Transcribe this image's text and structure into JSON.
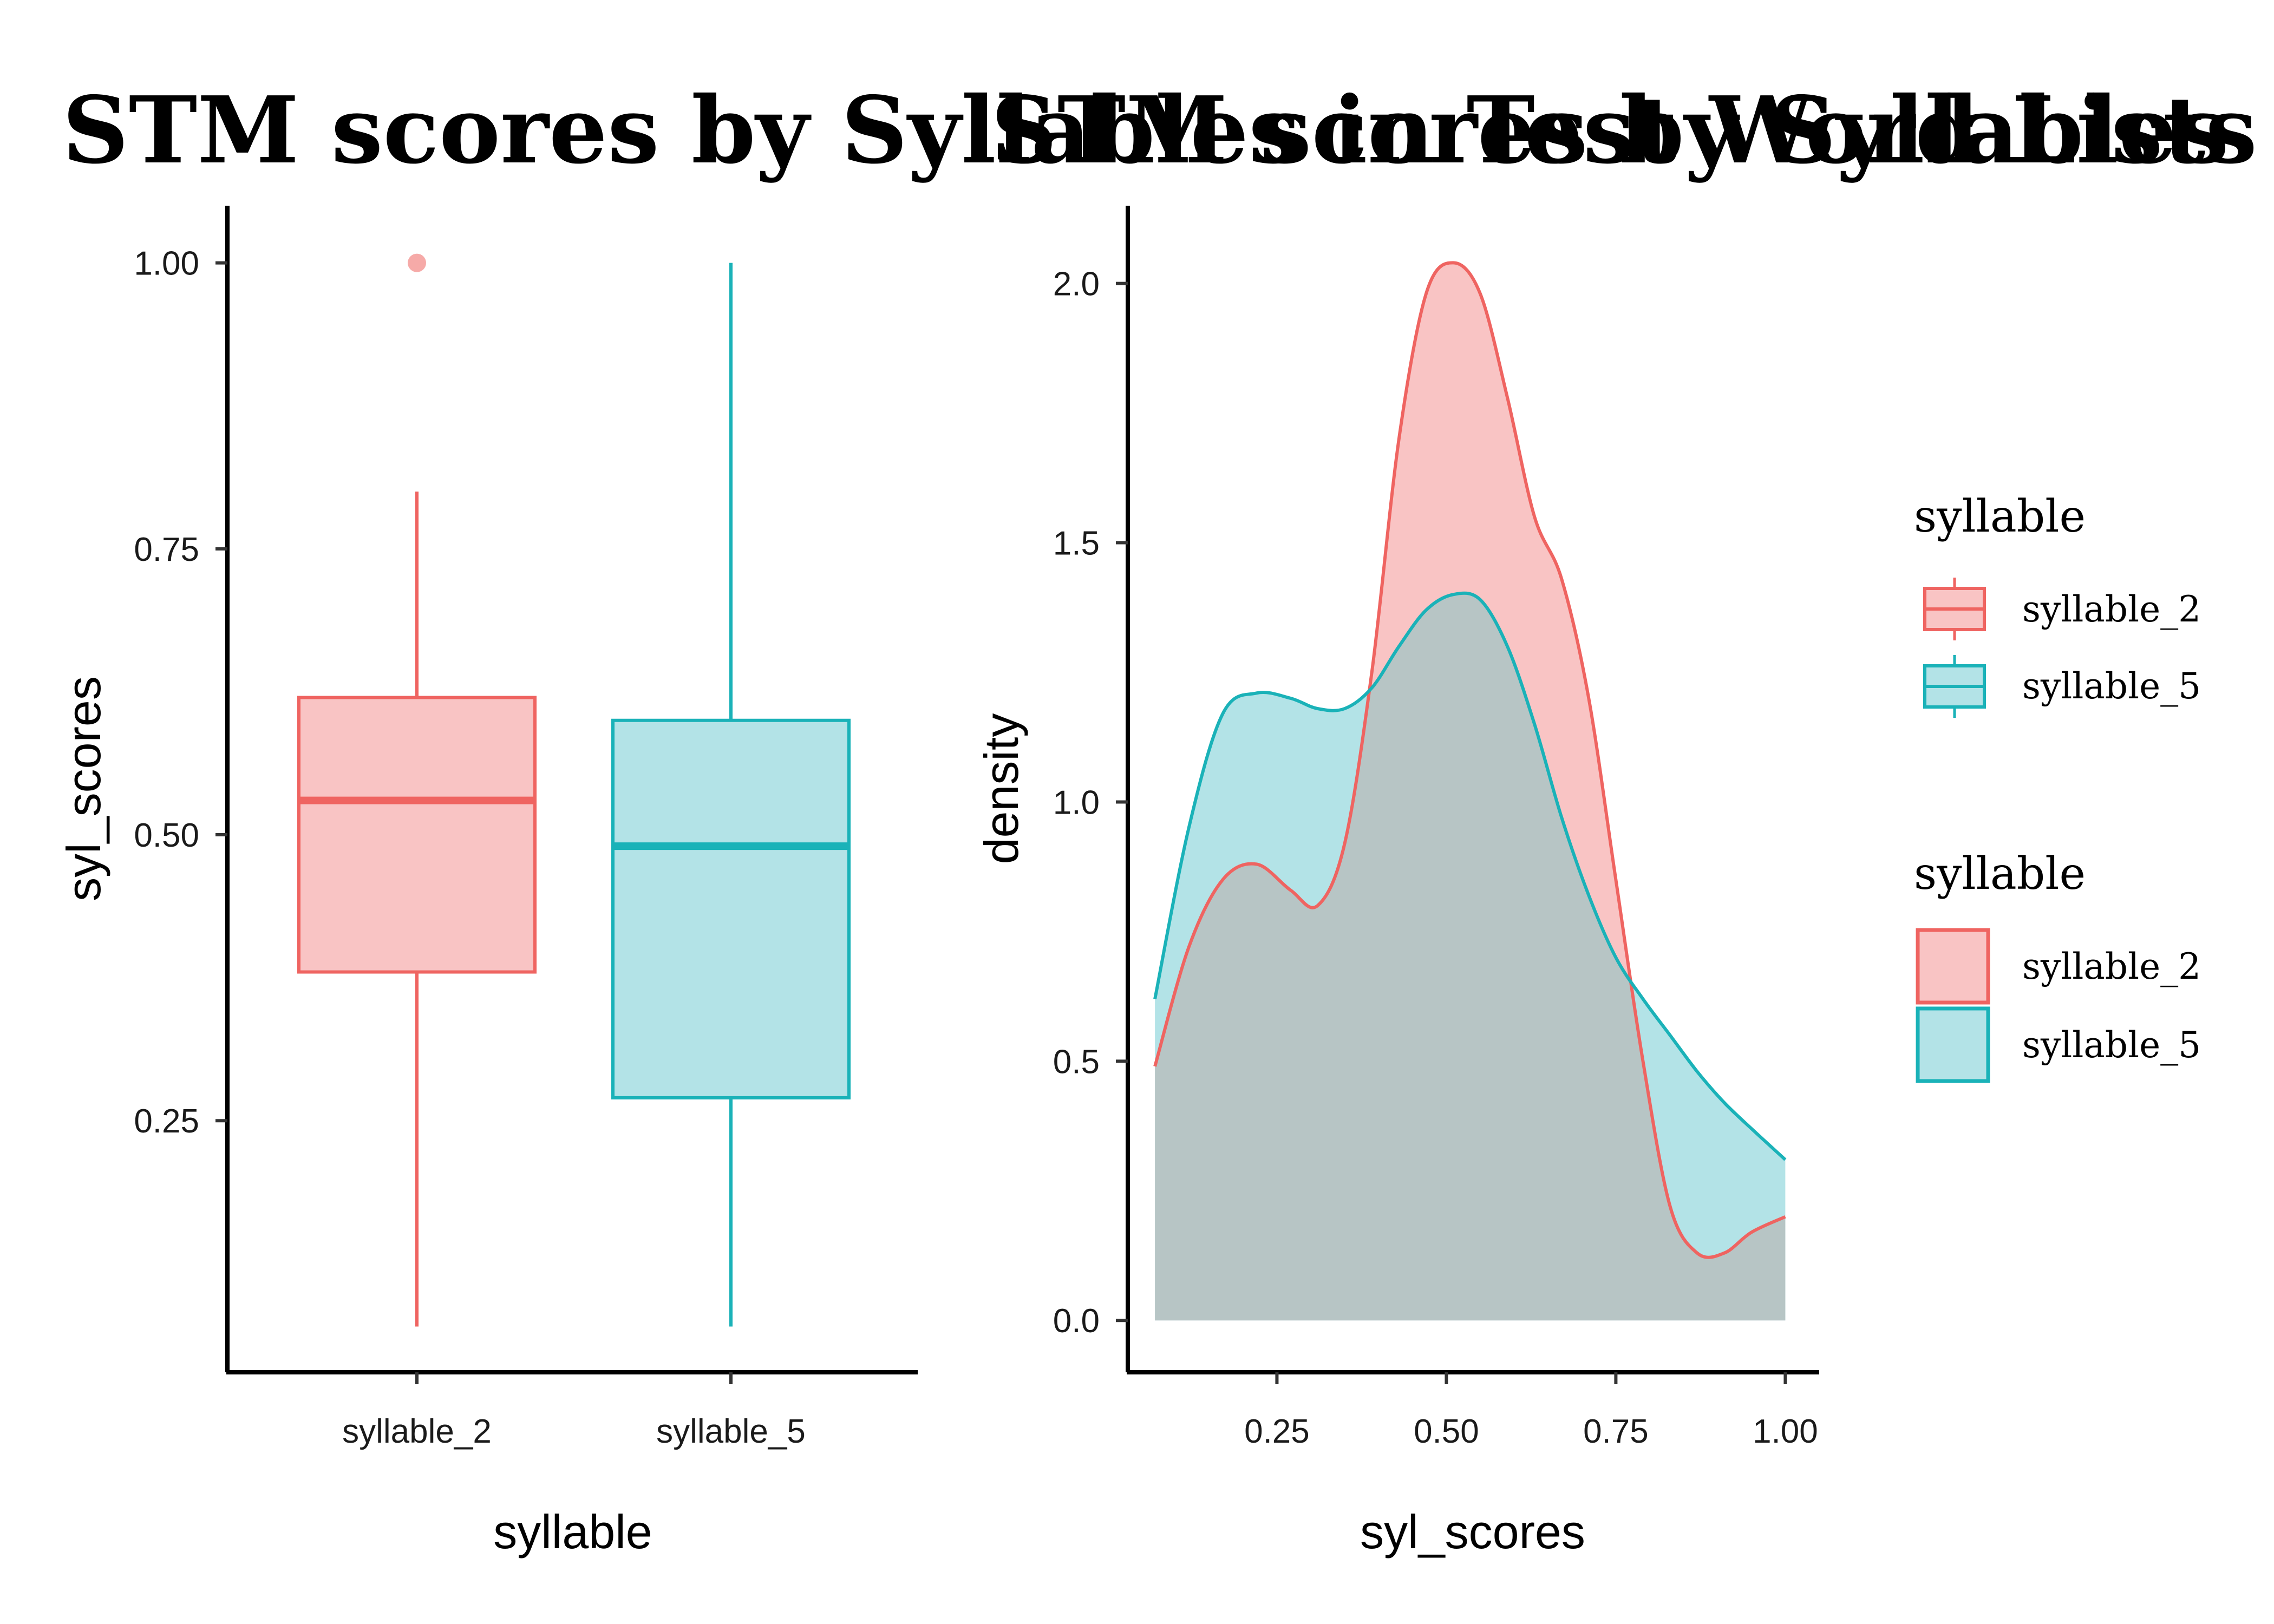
{
  "colors": {
    "syllable_2_line": "#ef6461",
    "syllable_2_fill": "#f9c4c4",
    "syllable_5_line": "#1ab2b8",
    "syllable_5_fill": "#b3e3e7",
    "overlap_fill": "#b7c5c5",
    "axis": "#000000"
  },
  "chart_data": [
    {
      "type": "box",
      "title": "STM scores by Syllables in Test Word Lists",
      "xlabel": "syllable",
      "ylabel": "syl_scores",
      "categories": [
        "syllable_2",
        "syllable_5"
      ],
      "ylim": [
        0.03,
        1.05
      ],
      "yticks": [
        0.25,
        0.5,
        0.75,
        1.0
      ],
      "ytick_labels": [
        "0.25",
        "0.50",
        "0.75",
        "1.00"
      ],
      "boxes": [
        {
          "name": "syllable_2",
          "min": 0.07,
          "q1": 0.38,
          "median": 0.53,
          "q3": 0.62,
          "max": 0.8,
          "outliers": [
            1.0
          ]
        },
        {
          "name": "syllable_5",
          "min": 0.07,
          "q1": 0.27,
          "median": 0.49,
          "q3": 0.6,
          "max": 1.0,
          "outliers": []
        }
      ],
      "grid": false
    },
    {
      "type": "area",
      "title": "STM scores by Syllables",
      "xlabel": "syl_scores",
      "ylabel": "density",
      "xlim": [
        0.03,
        1.05
      ],
      "ylim": [
        -0.1,
        2.15
      ],
      "xticks": [
        0.25,
        0.5,
        0.75,
        1.0
      ],
      "xtick_labels": [
        "0.25",
        "0.50",
        "0.75",
        "1.00"
      ],
      "yticks": [
        0.0,
        0.5,
        1.0,
        1.5,
        2.0
      ],
      "ytick_labels": [
        "0.0",
        "0.5",
        "1.0",
        "1.5",
        "2.0"
      ],
      "series": [
        {
          "name": "syllable_2",
          "x": [
            0.07,
            0.12,
            0.17,
            0.22,
            0.27,
            0.31,
            0.35,
            0.39,
            0.43,
            0.47,
            0.51,
            0.55,
            0.59,
            0.63,
            0.67,
            0.71,
            0.75,
            0.79,
            0.83,
            0.87,
            0.91,
            0.95,
            1.0
          ],
          "y": [
            0.49,
            0.72,
            0.85,
            0.88,
            0.83,
            0.8,
            0.92,
            1.25,
            1.7,
            1.98,
            2.04,
            1.98,
            1.78,
            1.55,
            1.43,
            1.2,
            0.85,
            0.5,
            0.22,
            0.13,
            0.13,
            0.17,
            0.2
          ]
        },
        {
          "name": "syllable_5",
          "x": [
            0.07,
            0.12,
            0.17,
            0.22,
            0.27,
            0.31,
            0.35,
            0.39,
            0.43,
            0.47,
            0.51,
            0.55,
            0.59,
            0.63,
            0.67,
            0.71,
            0.75,
            0.79,
            0.83,
            0.87,
            0.91,
            0.95,
            1.0
          ],
          "y": [
            0.62,
            0.95,
            1.17,
            1.21,
            1.2,
            1.18,
            1.18,
            1.22,
            1.3,
            1.37,
            1.4,
            1.39,
            1.3,
            1.15,
            0.97,
            0.82,
            0.7,
            0.62,
            0.55,
            0.48,
            0.42,
            0.37,
            0.31
          ]
        }
      ],
      "grid": false
    }
  ],
  "legends": [
    {
      "title": "syllable",
      "kind": "box",
      "entries": [
        "syllable_2",
        "syllable_5"
      ]
    },
    {
      "title": "syllable",
      "kind": "fill",
      "entries": [
        "syllable_2",
        "syllable_5"
      ]
    }
  ]
}
